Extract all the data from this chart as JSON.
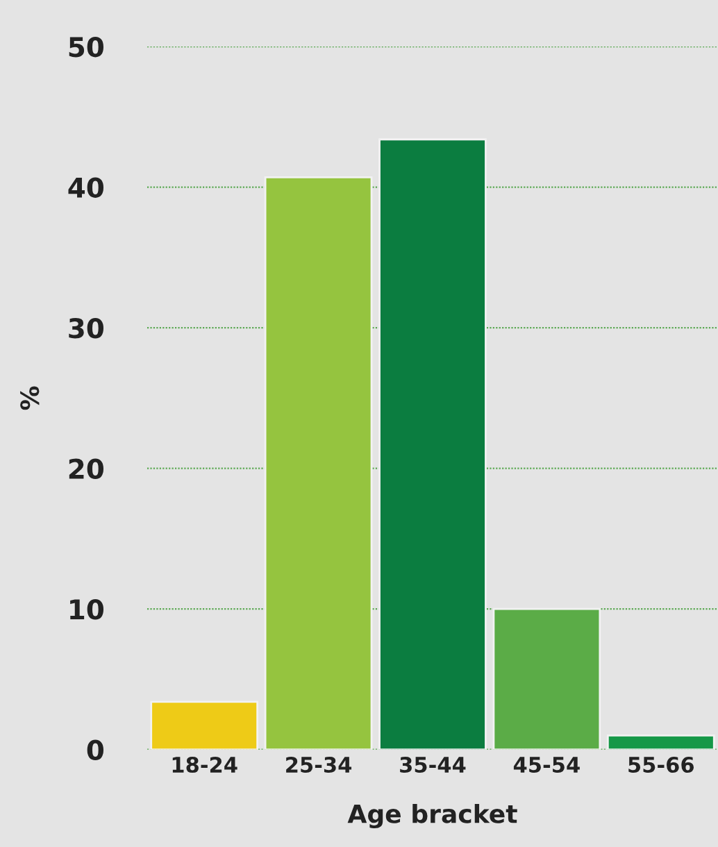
{
  "chart_data": {
    "type": "bar",
    "xlabel": "Age bracket",
    "ylabel": "%",
    "categories": [
      "18-24",
      "25-34",
      "35-44",
      "45-54",
      "55-66"
    ],
    "values": [
      3.4,
      40.7,
      43.4,
      10.0,
      1.0
    ],
    "colors": [
      "#eecb17",
      "#95c43f",
      "#0b7d40",
      "#5bac47",
      "#159847"
    ],
    "ylim": [
      0,
      50
    ],
    "yticks": [
      0,
      10,
      20,
      30,
      40,
      50
    ],
    "grid": "y"
  }
}
